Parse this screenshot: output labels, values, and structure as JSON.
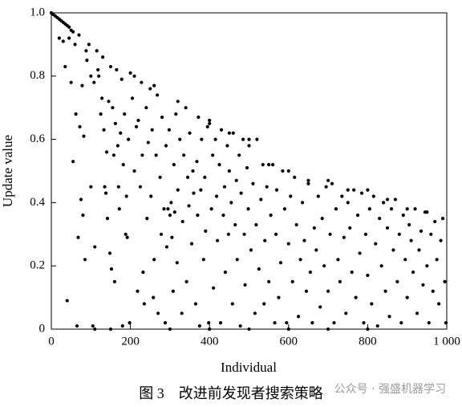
{
  "chart_data": {
    "type": "scatter",
    "xlabel": "Individual",
    "ylabel": "Update value",
    "caption": "图 3　改进前发现者搜索策略",
    "watermark": "公众号 · 强盛机器学习",
    "color": "#000000",
    "xlim": [
      0,
      1000
    ],
    "ylim": [
      0,
      1
    ],
    "xticks": [
      0,
      200,
      400,
      600,
      800,
      {
        "value": 1000,
        "label": "1 000"
      }
    ],
    "yticks": [
      0,
      0.2,
      0.4,
      0.6,
      0.8,
      {
        "value": 1,
        "label": "1.0"
      }
    ],
    "x": [
      0,
      5,
      10,
      15,
      20,
      25,
      30,
      35,
      40,
      45,
      50,
      55,
      20,
      30,
      35,
      40,
      45,
      50,
      55,
      60,
      62,
      65,
      68,
      70,
      72,
      75,
      78,
      80,
      82,
      85,
      88,
      90,
      95,
      100,
      100,
      105,
      108,
      110,
      115,
      118,
      120,
      125,
      128,
      130,
      133,
      135,
      138,
      140,
      142,
      145,
      148,
      150,
      152,
      155,
      158,
      160,
      162,
      165,
      168,
      170,
      172,
      175,
      178,
      180,
      182,
      185,
      188,
      190,
      192,
      195,
      198,
      200,
      205,
      210,
      215,
      218,
      220,
      225,
      228,
      230,
      232,
      235,
      240,
      242,
      245,
      250,
      252,
      255,
      258,
      260,
      265,
      268,
      270,
      275,
      278,
      280,
      285,
      288,
      290,
      292,
      295,
      298,
      300,
      303,
      305,
      308,
      310,
      312,
      315,
      318,
      320,
      325,
      330,
      332,
      335,
      340,
      342,
      345,
      348,
      350,
      355,
      358,
      360,
      365,
      368,
      370,
      372,
      375,
      378,
      380,
      385,
      388,
      390,
      395,
      398,
      400,
      405,
      408,
      410,
      415,
      418,
      420,
      425,
      428,
      430,
      435,
      438,
      440,
      445,
      448,
      450,
      455,
      458,
      460,
      465,
      468,
      470,
      475,
      478,
      480,
      485,
      488,
      490,
      495,
      498,
      500,
      505,
      510,
      515,
      518,
      520,
      525,
      530,
      535,
      538,
      540,
      545,
      550,
      555,
      560,
      565,
      568,
      570,
      575,
      580,
      585,
      590,
      595,
      600,
      605,
      610,
      615,
      620,
      625,
      630,
      635,
      640,
      645,
      650,
      655,
      660,
      665,
      670,
      675,
      680,
      685,
      690,
      695,
      700,
      705,
      710,
      715,
      720,
      725,
      730,
      735,
      740,
      745,
      750,
      755,
      760,
      765,
      770,
      775,
      780,
      785,
      790,
      795,
      800,
      805,
      810,
      815,
      820,
      825,
      830,
      835,
      840,
      845,
      850,
      855,
      860,
      865,
      870,
      875,
      880,
      885,
      890,
      895,
      900,
      905,
      910,
      915,
      920,
      925,
      930,
      935,
      940,
      945,
      950,
      955,
      960,
      965,
      970,
      975,
      980,
      985,
      990,
      995,
      998,
      210,
      260,
      320,
      400,
      450,
      500,
      550,
      600,
      650,
      700,
      750,
      800,
      850,
      900,
      950,
      110,
      150,
      300,
      400,
      500,
      600,
      700,
      800
    ],
    "values": [
      1,
      0.995,
      0.99,
      0.985,
      0.98,
      0.975,
      0.97,
      0.965,
      0.96,
      0.955,
      0.945,
      0.94,
      0.92,
      0.91,
      0.83,
      0.09,
      0.92,
      0.78,
      0.53,
      0.9,
      0.68,
      0.01,
      0.29,
      0.93,
      0.64,
      0.41,
      0.77,
      0.36,
      0.61,
      0.22,
      0.88,
      0.85,
      0.9,
      0.8,
      0.45,
      0.01,
      0.78,
      0.26,
      0.88,
      0.82,
      0.8,
      0.68,
      0.73,
      0.86,
      0.63,
      0.45,
      0.43,
      0.56,
      0.35,
      0.72,
      0.24,
      0.83,
      0.19,
      0.7,
      0.55,
      0.15,
      0.65,
      0.82,
      0.58,
      0.45,
      0.38,
      0.62,
      0.79,
      0.01,
      0.52,
      0.68,
      0.3,
      0.42,
      0.29,
      0.6,
      0.02,
      0.81,
      0.73,
      0.5,
      0.64,
      0.12,
      0.66,
      0.45,
      0.78,
      0.55,
      0.18,
      0.08,
      0.7,
      0.35,
      0.59,
      0.76,
      0.42,
      0.63,
      0.1,
      0.22,
      0.55,
      0.74,
      0.05,
      0.48,
      0.3,
      0.67,
      0.38,
      0.02,
      0.58,
      0.26,
      0.38,
      0.63,
      0.36,
      0.4,
      0.29,
      0.12,
      0.52,
      0.37,
      0.68,
      0.21,
      0.44,
      0.6,
      0.05,
      0.34,
      0.55,
      0.7,
      0.15,
      0.48,
      0.39,
      0.62,
      0.27,
      0.5,
      0.43,
      0.08,
      0.53,
      0.36,
      0.67,
      0.01,
      0.44,
      0.6,
      0.22,
      0.48,
      0.31,
      0.64,
      0.02,
      0.66,
      0.38,
      0.55,
      0.13,
      0.6,
      0.42,
      0.28,
      0.52,
      0.02,
      0.63,
      0.36,
      0.45,
      0.18,
      0.58,
      0.3,
      0.5,
      0.4,
      0.08,
      0.62,
      0.33,
      0.47,
      0.22,
      0.55,
      0.01,
      0.43,
      0.6,
      0.3,
      0.14,
      0.51,
      0.38,
      0.58,
      0.25,
      0.46,
      0.05,
      0.33,
      0.6,
      0.19,
      0.41,
      0.52,
      0.08,
      0.28,
      0.45,
      0.15,
      0.36,
      0.52,
      0.02,
      0.3,
      0.44,
      0.1,
      0.21,
      0.5,
      0.38,
      0.02,
      0.27,
      0.42,
      0.15,
      0.48,
      0.33,
      0.04,
      0.22,
      0.4,
      0.28,
      0.12,
      0.46,
      0.18,
      0.02,
      0.32,
      0.25,
      0.42,
      0.07,
      0.35,
      0.2,
      0.45,
      0.12,
      0.3,
      0.46,
      0.02,
      0.38,
      0.22,
      0.15,
      0.42,
      0.29,
      0.05,
      0.4,
      0.32,
      0.18,
      0.44,
      0.1,
      0.36,
      0.24,
      0.43,
      0.02,
      0.3,
      0.17,
      0.38,
      0.08,
      0.42,
      0.27,
      0.01,
      0.35,
      0.2,
      0.4,
      0.12,
      0.32,
      0.04,
      0.38,
      0.25,
      0.41,
      0.15,
      0.3,
      0.02,
      0.36,
      0.22,
      0.1,
      0.33,
      0.28,
      0.18,
      0.38,
      0.05,
      0.25,
      0.31,
      0.14,
      0.37,
      0.2,
      0.02,
      0.3,
      0.12,
      0.34,
      0.22,
      0.08,
      0.28,
      0.35,
      0.15,
      0.02,
      0.8,
      0.77,
      0.72,
      0.65,
      0.62,
      0.6,
      0.52,
      0.5,
      0.47,
      0.47,
      0.44,
      0.44,
      0.41,
      0.38,
      0.37,
      0,
      0,
      0,
      0,
      0,
      0,
      0,
      0
    ]
  }
}
